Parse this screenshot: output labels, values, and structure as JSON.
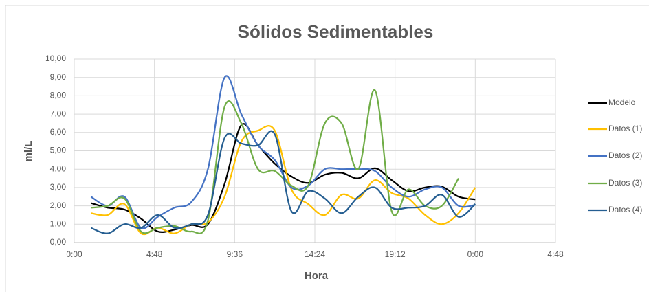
{
  "chart_data": {
    "type": "line",
    "title": "Sólidos Sedimentables",
    "x_label": "Hora",
    "y_label": "ml/L",
    "x": [
      1,
      2,
      3,
      4,
      5,
      6,
      7,
      8,
      9,
      10,
      11,
      12,
      13,
      14,
      15,
      16,
      17,
      18,
      19,
      20,
      21,
      22,
      23,
      24
    ],
    "series": [
      {
        "name": "Modelo",
        "color": "#000000",
        "values": [
          2.15,
          1.9,
          1.8,
          1.3,
          0.6,
          0.7,
          0.95,
          1.0,
          3.2,
          6.4,
          5.3,
          4.3,
          3.6,
          3.25,
          3.7,
          3.8,
          3.5,
          4.05,
          3.4,
          2.8,
          3.0,
          3.05,
          2.5,
          2.35
        ]
      },
      {
        "name": "Datos (1)",
        "color": "#ffc000",
        "values": [
          1.6,
          1.5,
          2.1,
          0.5,
          0.8,
          0.5,
          1.0,
          1.1,
          2.5,
          5.5,
          6.1,
          6.1,
          2.9,
          2.1,
          1.5,
          2.6,
          2.4,
          3.4,
          2.7,
          2.4,
          1.5,
          1.0,
          1.6,
          3.0
        ]
      },
      {
        "name": "Datos (2)",
        "color": "#4472c4",
        "values": [
          2.5,
          2.0,
          2.5,
          0.8,
          1.4,
          1.9,
          2.2,
          4.0,
          9.0,
          7.0,
          5.3,
          4.5,
          3.0,
          3.1,
          4.0,
          4.0,
          4.0,
          3.9,
          3.0,
          2.5,
          2.9,
          3.0,
          2.0,
          2.05
        ]
      },
      {
        "name": "Datos (3)",
        "color": "#70ad47",
        "values": [
          1.9,
          2.0,
          2.4,
          0.6,
          0.8,
          0.9,
          0.6,
          1.2,
          7.4,
          6.5,
          4.0,
          3.9,
          3.1,
          3.1,
          6.5,
          6.5,
          4.0,
          8.3,
          1.7,
          2.9,
          2.0,
          2.0,
          3.5,
          null
        ]
      },
      {
        "name": "Datos (4)",
        "color": "#255e91",
        "values": [
          0.8,
          0.5,
          1.0,
          0.8,
          1.5,
          0.8,
          1.0,
          1.5,
          5.7,
          5.4,
          5.3,
          5.9,
          1.7,
          2.8,
          2.4,
          1.6,
          2.5,
          3.0,
          1.9,
          1.9,
          2.0,
          2.6,
          1.4,
          2.1
        ]
      }
    ],
    "xlim": [
      0,
      28.8
    ],
    "xticks": [
      {
        "value": 0,
        "label": "0:00"
      },
      {
        "value": 4.8,
        "label": "4:48"
      },
      {
        "value": 9.6,
        "label": "9:36"
      },
      {
        "value": 14.4,
        "label": "14:24"
      },
      {
        "value": 19.2,
        "label": "19:12"
      },
      {
        "value": 24,
        "label": "0:00"
      },
      {
        "value": 28.8,
        "label": "4:48"
      }
    ],
    "ylim": [
      0,
      10
    ],
    "yticks": [
      {
        "value": 0,
        "label": "0,00"
      },
      {
        "value": 1,
        "label": "1,00"
      },
      {
        "value": 2,
        "label": "2,00"
      },
      {
        "value": 3,
        "label": "3,00"
      },
      {
        "value": 4,
        "label": "4,00"
      },
      {
        "value": 5,
        "label": "5,00"
      },
      {
        "value": 6,
        "label": "6,00"
      },
      {
        "value": 7,
        "label": "7,00"
      },
      {
        "value": 8,
        "label": "8,00"
      },
      {
        "value": 9,
        "label": "9,00"
      },
      {
        "value": 10,
        "label": "10,00"
      }
    ],
    "grid": true,
    "legend": "right"
  }
}
